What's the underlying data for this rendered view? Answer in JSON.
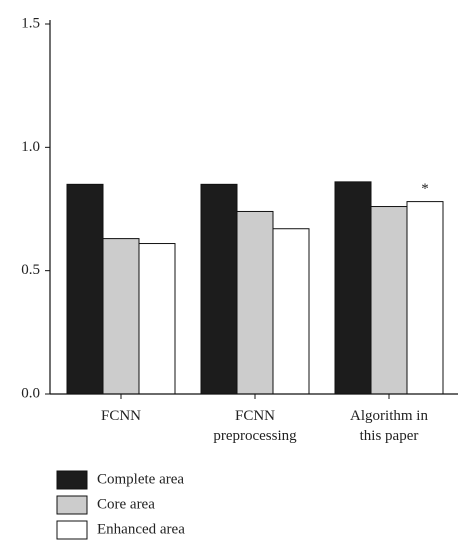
{
  "chart_data": {
    "type": "bar",
    "categories": [
      "FCNN",
      "FCNN\npreprocessing",
      "Algorithm in\nthis paper"
    ],
    "series": [
      {
        "name": "Complete area",
        "color": "#1c1c1c",
        "values": [
          0.85,
          0.85,
          0.86
        ]
      },
      {
        "name": "Core area",
        "color": "#cccccc",
        "values": [
          0.63,
          0.74,
          0.76
        ]
      },
      {
        "name": "Enhanced area",
        "color": "#ffffff",
        "values": [
          0.61,
          0.67,
          0.78
        ]
      }
    ],
    "annotation": "*",
    "ylim": [
      0,
      1.5
    ],
    "yticks": [
      {
        "value": 0,
        "label": "0.0"
      },
      0.5,
      {
        "value": 1,
        "label": "1.0"
      },
      1.5
    ],
    "grid": false
  }
}
